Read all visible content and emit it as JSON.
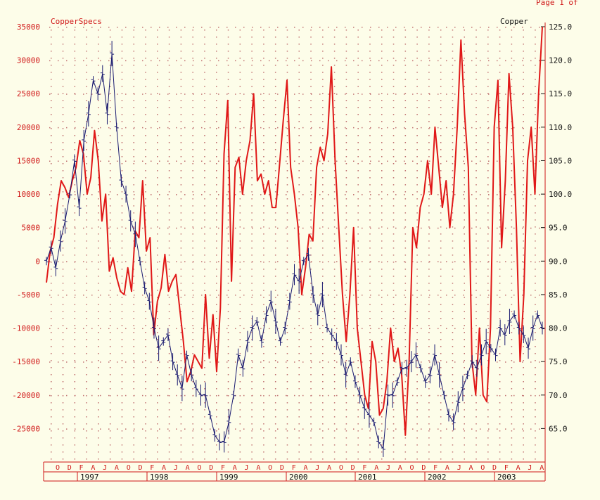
{
  "header": {
    "page_label": "Page 1 of"
  },
  "chart_data": {
    "type": "line",
    "title_left": "CopperSpecs",
    "title_right": "Copper",
    "left_axis": {
      "ticks": [
        35000,
        30000,
        25000,
        20000,
        15000,
        10000,
        5000,
        0,
        -5000,
        -10000,
        -15000,
        -20000,
        -25000
      ],
      "range": [
        -30000,
        35000
      ]
    },
    "right_axis": {
      "ticks": [
        "125.0",
        "120.0",
        "115.0",
        "110.0",
        "105.0",
        "100.0",
        "95.0",
        "90.0",
        "85.0",
        "80.0",
        "75.0",
        "70.0",
        "65.0"
      ],
      "range": [
        60,
        125
      ]
    },
    "x_axis": {
      "months": [
        "O",
        "D",
        "F",
        "A",
        "J",
        "A",
        "O",
        "D",
        "F",
        "A",
        "J",
        "A",
        "O",
        "D",
        "F",
        "A",
        "J",
        "A",
        "O",
        "D",
        "F",
        "A",
        "J",
        "A",
        "O",
        "D",
        "F",
        "A",
        "J",
        "A",
        "O",
        "D",
        "F",
        "A",
        "J",
        "A",
        "O",
        "D",
        "F",
        "A",
        "J",
        "A"
      ],
      "years": [
        "1997",
        "1998",
        "1999",
        "2000",
        "2001",
        "2002",
        "2003"
      ]
    },
    "grid": true,
    "series": [
      {
        "name": "CopperSpecs",
        "color": "#e01818",
        "axis": "left",
        "values": [
          -3200,
          1500,
          3500,
          8500,
          12000,
          11000,
          9500,
          12000,
          14000,
          18000,
          16000,
          10000,
          12500,
          19500,
          15000,
          6000,
          10000,
          -1500,
          500,
          -2500,
          -4500,
          -5000,
          -1000,
          -4500,
          4500,
          3500,
          12000,
          1500,
          3500,
          -11000,
          -6000,
          -4000,
          1000,
          -4500,
          -3000,
          -2000,
          -7000,
          -12000,
          -18000,
          -16500,
          -14000,
          -15000,
          -16000,
          -5000,
          -14500,
          -8000,
          -16500,
          -7000,
          16000,
          24000,
          -3000,
          14000,
          15500,
          10000,
          15000,
          18000,
          25000,
          12000,
          13000,
          10000,
          12000,
          8000,
          8000,
          14500,
          21000,
          27000,
          14000,
          10000,
          5000,
          -5000,
          -1000,
          4000,
          3000,
          14000,
          17000,
          15000,
          19000,
          29000,
          15000,
          5000,
          -5000,
          -12000,
          -5000,
          5000,
          -10000,
          -15000,
          -20000,
          -22000,
          -12000,
          -15000,
          -23000,
          -22000,
          -18000,
          -10000,
          -15000,
          -13000,
          -17000,
          -26000,
          -15000,
          5000,
          2000,
          8000,
          10000,
          15000,
          10000,
          20000,
          14000,
          8000,
          12000,
          5000,
          10000,
          20000,
          33000,
          22000,
          14000,
          -15000,
          -20000,
          -10000,
          -20000,
          -21000,
          -10000,
          20000,
          27000,
          2000,
          12000,
          28000,
          20000,
          5000,
          -15000,
          -5000,
          15000,
          20000,
          10000,
          25000,
          35000
        ]
      },
      {
        "name": "Copper",
        "color": "#1a1a70",
        "axis": "right",
        "values": [
          90,
          92,
          89,
          93,
          96,
          100,
          105,
          98,
          108,
          112,
          117,
          115,
          118,
          112,
          121,
          110,
          102,
          100,
          96,
          94,
          90,
          86,
          84,
          80,
          77,
          78,
          79,
          75,
          73,
          71,
          76,
          73,
          71,
          70,
          70,
          67,
          64,
          63,
          63,
          66,
          70,
          76,
          74,
          78,
          80,
          81,
          78,
          82,
          84,
          81,
          78,
          80,
          84,
          88,
          87,
          90,
          91,
          85,
          82,
          85,
          80,
          79,
          78,
          76,
          73,
          75,
          72,
          70,
          68,
          67,
          66,
          63,
          62,
          70,
          70,
          72,
          74,
          74,
          75,
          76,
          74,
          72,
          73,
          76,
          73,
          70,
          67,
          66,
          69,
          71,
          73,
          75,
          74,
          76,
          78,
          77,
          76,
          80,
          79,
          81,
          82,
          80,
          79,
          77,
          80,
          82,
          80
        ]
      }
    ]
  }
}
